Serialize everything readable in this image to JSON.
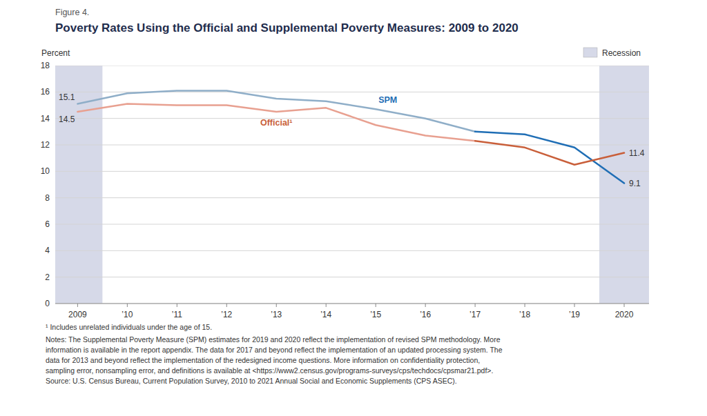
{
  "chart_data": {
    "type": "line",
    "subtitle": "Figure 4.",
    "title": "Poverty Rates Using the Official and Supplemental Poverty Measures: 2009 to 2020",
    "y_label": "Percent",
    "x": [
      2009,
      2010,
      2011,
      2012,
      2013,
      2014,
      2015,
      2016,
      2017,
      2018,
      2019,
      2020
    ],
    "xlim": [
      2008.55,
      2020.5
    ],
    "xticks": [
      2009,
      {
        "value": 2010,
        "label": "’10"
      },
      {
        "value": 2011,
        "label": "’11"
      },
      {
        "value": 2012,
        "label": "’12"
      },
      {
        "value": 2013,
        "label": "’13"
      },
      {
        "value": 2014,
        "label": "’14"
      },
      {
        "value": 2015,
        "label": "’15"
      },
      {
        "value": 2016,
        "label": "’16"
      },
      {
        "value": 2017,
        "label": "’17"
      },
      {
        "value": 2018,
        "label": "’18"
      },
      {
        "value": 2019,
        "label": "’19"
      },
      2020
    ],
    "ylim": [
      0,
      18
    ],
    "yticks": [
      0,
      2,
      4,
      6,
      8,
      10,
      12,
      14,
      16,
      18
    ],
    "grid": true,
    "legend": "upper right",
    "data_labels": true,
    "series": [
      {
        "name": "SPM",
        "color": "#1f6eb5",
        "colors": [
          "#8faec8",
          "#8faec8",
          "#8faec8",
          "#8faec8",
          "#8faec8",
          "#8faec8",
          "#8faec8",
          "#8faec8",
          "#8faec8",
          "#1f6eb5",
          "#1f6eb5",
          "#1f6eb5"
        ],
        "values": [
          15.1,
          15.9,
          16.1,
          16.1,
          15.5,
          15.3,
          14.7,
          14.0,
          13.0,
          12.8,
          11.8,
          9.1
        ],
        "value_labels": [
          "15.1",
          null,
          null,
          null,
          null,
          null,
          null,
          null,
          null,
          null,
          null,
          "9.1"
        ]
      },
      {
        "name": "Official¹",
        "color": "#c95f3a",
        "colors": [
          "#e8a090",
          "#e8a090",
          "#e8a090",
          "#e8a090",
          "#e8a090",
          "#e8a090",
          "#e8a090",
          "#e8a090",
          "#e8a090",
          "#c95f3a",
          "#c95f3a",
          "#c95f3a"
        ],
        "values": [
          14.5,
          15.1,
          15.0,
          15.0,
          14.5,
          14.8,
          13.5,
          12.7,
          12.3,
          11.8,
          10.5,
          11.4
        ],
        "value_labels": [
          "14.5",
          null,
          null,
          null,
          null,
          null,
          null,
          null,
          null,
          null,
          null,
          "11.4"
        ]
      }
    ],
    "bands": [
      {
        "name": "Recession",
        "color": "#d6d9e8",
        "ranges": [
          [
            2008.55,
            2009.5
          ],
          [
            2019.5,
            2020.5
          ]
        ]
      }
    ],
    "notes": [
      "¹ Includes unrelated individuals under the age of 15.",
      "Notes: The Supplemental Poverty Measure (SPM) estimates for 2019 and 2020 reflect the implementation of revised SPM methodology. More\ninformation is available in the report appendix. The data for 2017 and beyond reflect the implementation of an updated processing system. The\ndata for 2013 and beyond reflect the implementation of the redesigned income questions. More information on confidentiality protection,\nsampling error, nonsampling error, and definitions is available at <https://www2.census.gov/programs-surveys/cps/techdocs/cpsmar21.pdf>.\nSource: U.S. Census Bureau, Current Population Survey, 2010 to 2021 Annual Social and Economic Supplements (CPS ASEC)."
    ]
  }
}
